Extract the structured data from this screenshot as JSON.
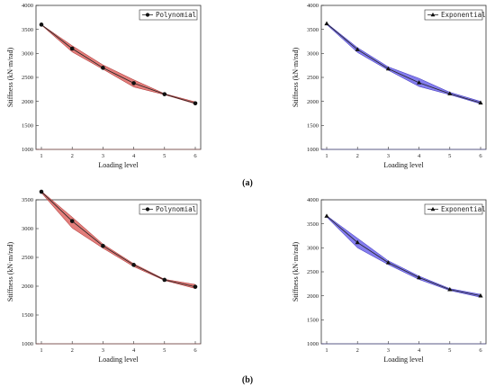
{
  "panel_labels": [
    "(a)",
    "(b)"
  ],
  "colors": {
    "red": "#d9534f",
    "blue": "#5b52e8"
  },
  "chart_data": [
    {
      "type": "line",
      "row": "a",
      "series": [
        {
          "name": "Polynomial",
          "values": [
            3600,
            3100,
            2700,
            2380,
            2150,
            1960
          ]
        }
      ],
      "categories": [
        1,
        2,
        3,
        4,
        5,
        6
      ],
      "band_upper": [
        3600,
        3160,
        2760,
        2450,
        2160,
        1990
      ],
      "band_lower": [
        3590,
        3030,
        2670,
        2300,
        2140,
        1950
      ],
      "marker": "circle",
      "color": "red",
      "xlabel": "Loading level",
      "ylabel": "Stiffness (kN·m/rad)",
      "ylim": [
        1000,
        4000
      ],
      "yticks": [
        1000,
        1500,
        2000,
        2500,
        3000,
        3500,
        4000
      ],
      "legend": "top-right"
    },
    {
      "type": "line",
      "row": "a",
      "series": [
        {
          "name": "Exponential",
          "values": [
            3620,
            3080,
            2680,
            2390,
            2160,
            1970
          ]
        }
      ],
      "categories": [
        1,
        2,
        3,
        4,
        5,
        6
      ],
      "band_upper": [
        3630,
        3120,
        2720,
        2480,
        2190,
        2000
      ],
      "band_lower": [
        3600,
        3020,
        2650,
        2310,
        2140,
        1950
      ],
      "marker": "triangle",
      "color": "blue",
      "xlabel": "Loading level",
      "ylabel": "Stiffness (kN·m/rad)",
      "ylim": [
        1000,
        4000
      ],
      "yticks": [
        1000,
        1500,
        2000,
        2500,
        3000,
        3500,
        4000
      ],
      "legend": "top-right"
    },
    {
      "type": "line",
      "row": "b",
      "series": [
        {
          "name": "Polynomial",
          "values": [
            3640,
            3130,
            2700,
            2370,
            2110,
            1990
          ]
        }
      ],
      "categories": [
        1,
        2,
        3,
        4,
        5,
        6
      ],
      "band_upper": [
        3650,
        3200,
        2730,
        2390,
        2120,
        2030
      ],
      "band_lower": [
        3620,
        3010,
        2660,
        2340,
        2100,
        1960
      ],
      "marker": "circle",
      "color": "red",
      "xlabel": "Loading level",
      "ylabel": "Stiffness (kN·m/rad)",
      "ylim": [
        1000,
        3500
      ],
      "yticks": [
        1000,
        1500,
        2000,
        2500,
        3000,
        3500
      ],
      "legend": "top-right"
    },
    {
      "type": "line",
      "row": "b",
      "series": [
        {
          "name": "Exponential",
          "values": [
            3660,
            3110,
            2690,
            2380,
            2130,
            2000
          ]
        }
      ],
      "categories": [
        1,
        2,
        3,
        4,
        5,
        6
      ],
      "band_upper": [
        3670,
        3200,
        2730,
        2410,
        2150,
        2030
      ],
      "band_lower": [
        3640,
        3000,
        2650,
        2340,
        2110,
        1970
      ],
      "marker": "triangle",
      "color": "blue",
      "xlabel": "Loading level",
      "ylabel": "Stiffness (kN·m/rad)",
      "ylim": [
        1000,
        4000
      ],
      "yticks": [
        1000,
        1500,
        2000,
        2500,
        3000,
        3500,
        4000
      ],
      "legend": "top-right"
    }
  ]
}
